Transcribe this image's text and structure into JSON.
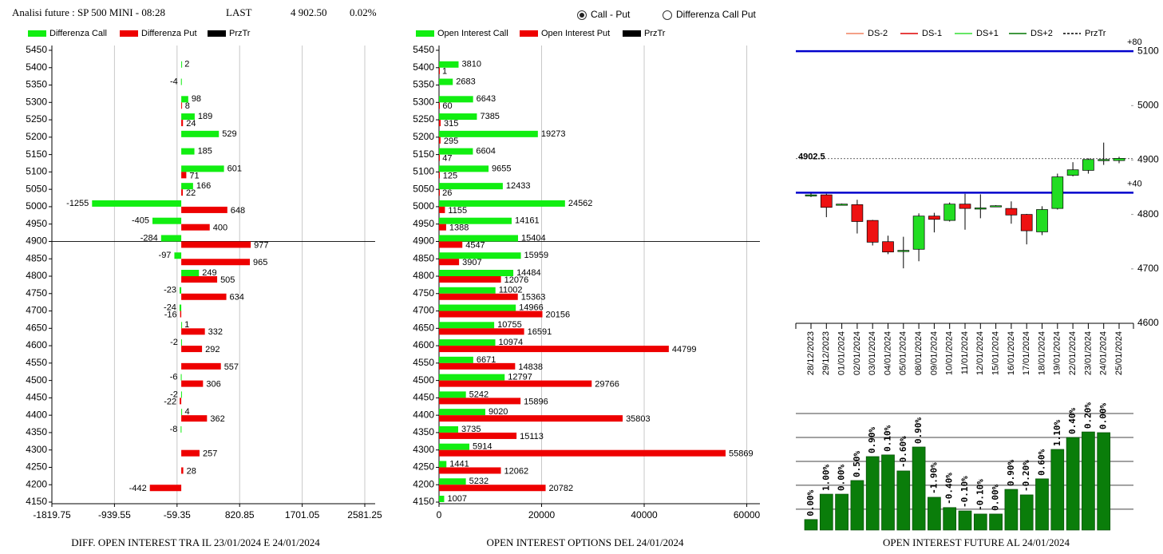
{
  "header": {
    "title": "Analisi future : SP 500 MINI - 08:28",
    "last_label": "LAST",
    "last_value": "4 902.50",
    "change": "0.02%",
    "options": [
      "Call - Put",
      "Differenza Call Put"
    ],
    "selected": 0
  },
  "chart_data": [
    {
      "type": "hbar",
      "title": "DIFF. OPEN INTEREST TRA IL 23/01/2024 E 24/01/2024",
      "categories": [
        5450,
        5400,
        5350,
        5300,
        5250,
        5200,
        5150,
        5100,
        5050,
        5000,
        4950,
        4900,
        4850,
        4800,
        4750,
        4700,
        4650,
        4600,
        4550,
        4500,
        4450,
        4400,
        4350,
        4300,
        4250,
        4200,
        4150
      ],
      "series": [
        {
          "name": "Differenza Call",
          "color": "#11ee11",
          "values": [
            null,
            2,
            -4,
            98,
            189,
            529,
            185,
            601,
            166,
            -1255,
            -405,
            -284,
            -97,
            249,
            -23,
            -24,
            1,
            -2,
            null,
            -6,
            -2,
            4,
            -8,
            null,
            null,
            null,
            null
          ]
        },
        {
          "name": "Differenza Put",
          "color": "#ee0000",
          "values": [
            null,
            null,
            null,
            8,
            24,
            null,
            null,
            71,
            22,
            648,
            400,
            977,
            965,
            505,
            634,
            -16,
            332,
            292,
            557,
            306,
            -22,
            362,
            null,
            257,
            28,
            -442,
            null
          ]
        }
      ],
      "reference": {
        "name": "PrzTr",
        "color": "#000000",
        "value": 4900
      },
      "xlim": [
        -1819.75,
        2581.25
      ],
      "xticks": [
        -1819.75,
        -939.55,
        -59.35,
        820.85,
        1701.05,
        2581.25
      ],
      "grid": true
    },
    {
      "type": "hbar",
      "title": "OPEN INTEREST OPTIONS DEL 24/01/2024",
      "categories": [
        5450,
        5400,
        5350,
        5300,
        5250,
        5200,
        5150,
        5100,
        5050,
        5000,
        4950,
        4900,
        4850,
        4800,
        4750,
        4700,
        4650,
        4600,
        4550,
        4500,
        4450,
        4400,
        4350,
        4300,
        4250,
        4200,
        4150
      ],
      "series": [
        {
          "name": "Open Interest Call",
          "color": "#11ee11",
          "values": [
            null,
            3810,
            2683,
            6643,
            7385,
            19273,
            6604,
            9655,
            12433,
            24562,
            14161,
            15404,
            15959,
            14484,
            11002,
            14966,
            10755,
            10974,
            6671,
            12797,
            5242,
            9020,
            3735,
            5914,
            1441,
            5232,
            1007
          ]
        },
        {
          "name": "Open Interest Put",
          "color": "#ee0000",
          "values": [
            null,
            1,
            null,
            60,
            315,
            295,
            47,
            125,
            26,
            1155,
            1388,
            4547,
            3907,
            12076,
            15363,
            20156,
            16591,
            44799,
            14838,
            29766,
            15896,
            35803,
            15113,
            55869,
            12062,
            20782,
            null
          ]
        }
      ],
      "reference": {
        "name": "PrzTr",
        "color": "#000000",
        "value": 4900
      },
      "xlim": [
        0,
        62560
      ],
      "xticks": [
        0,
        20000,
        40000,
        60000
      ],
      "grid": true
    },
    {
      "type": "candlestick",
      "x": [
        "28/12/2023",
        "29/12/2023",
        "01/01/2024",
        "02/01/2024",
        "03/01/2024",
        "04/01/2024",
        "05/01/2024",
        "08/01/2024",
        "09/01/2024",
        "10/01/2024",
        "11/01/2024",
        "12/01/2024",
        "15/01/2024",
        "16/01/2024",
        "17/01/2024",
        "18/01/2024",
        "19/01/2024",
        "22/01/2024",
        "23/01/2024",
        "24/01/2024",
        "25/01/2024"
      ],
      "open": [
        4835,
        4836,
        4819,
        4818,
        4789,
        4750,
        4732,
        4736,
        4797,
        4789,
        4819,
        4812,
        4816,
        4811,
        4800,
        4768,
        4811,
        4872,
        4881,
        4900,
        4899
      ],
      "high": [
        4839,
        4838,
        4820,
        4827,
        4790,
        4761,
        4759,
        4802,
        4803,
        4822,
        4838,
        4837,
        4817,
        4824,
        4801,
        4815,
        4875,
        4896,
        4903,
        4932,
        4906
      ],
      "low": [
        4832,
        4795,
        4818,
        4765,
        4743,
        4727,
        4701,
        4714,
        4767,
        4787,
        4772,
        4793,
        4815,
        4783,
        4745,
        4762,
        4809,
        4870,
        4875,
        4891,
        4894
      ],
      "close": [
        4836,
        4813,
        4819,
        4787,
        4749,
        4731,
        4734,
        4797,
        4791,
        4819,
        4811,
        4812,
        4816,
        4799,
        4770,
        4809,
        4869,
        4882,
        4901,
        4901,
        4903
      ],
      "up_color": "#22dd22",
      "down_color": "#ee1111",
      "legend": [
        {
          "name": "DS-2",
          "color": "#f08060",
          "dashed": false
        },
        {
          "name": "DS-1",
          "color": "#dd0000",
          "dashed": false
        },
        {
          "name": "DS+1",
          "color": "#33dd33",
          "dashed": false
        },
        {
          "name": "DS+2",
          "color": "#007700",
          "dashed": false
        },
        {
          "name": "PrzTr",
          "color": "#000000",
          "dashed": true
        }
      ],
      "levels": [
        {
          "label": "+80",
          "value": 5100,
          "color": "#0000cc"
        },
        {
          "label": "+40",
          "value": 4840,
          "color": "#0000cc"
        }
      ],
      "price_line": 4902.5,
      "ylim": [
        4600,
        5128
      ],
      "yticks": [
        4600,
        4700,
        4800,
        4900,
        5000,
        5100
      ]
    },
    {
      "type": "bar",
      "title": "OPEN INTEREST FUTURE AL 24/01/2024",
      "values": [
        0.57,
        1.63,
        1.63,
        2.2,
        3.2,
        3.27,
        2.6,
        3.6,
        1.5,
        1.07,
        0.93,
        0.8,
        0.8,
        1.83,
        1.6,
        2.27,
        3.5,
        4.0,
        4.23,
        4.2
      ],
      "labels": [
        "0.00%",
        "1.00%",
        "0.00%",
        "0.50%",
        "0.90%",
        "0.10%",
        "-0.60%",
        "0.90%",
        "-1.90%",
        "-0.40%",
        "-0.10%",
        "-0.10%",
        "0.00%",
        "0.90%",
        "-0.20%",
        "0.60%",
        "1.10%",
        "0.40%",
        "0.20%",
        "0.00%"
      ],
      "color": "#0a7d0a",
      "ylim": [
        0.13,
        5.6
      ],
      "grid_lines": [
        1,
        2,
        3,
        4,
        5
      ]
    }
  ]
}
